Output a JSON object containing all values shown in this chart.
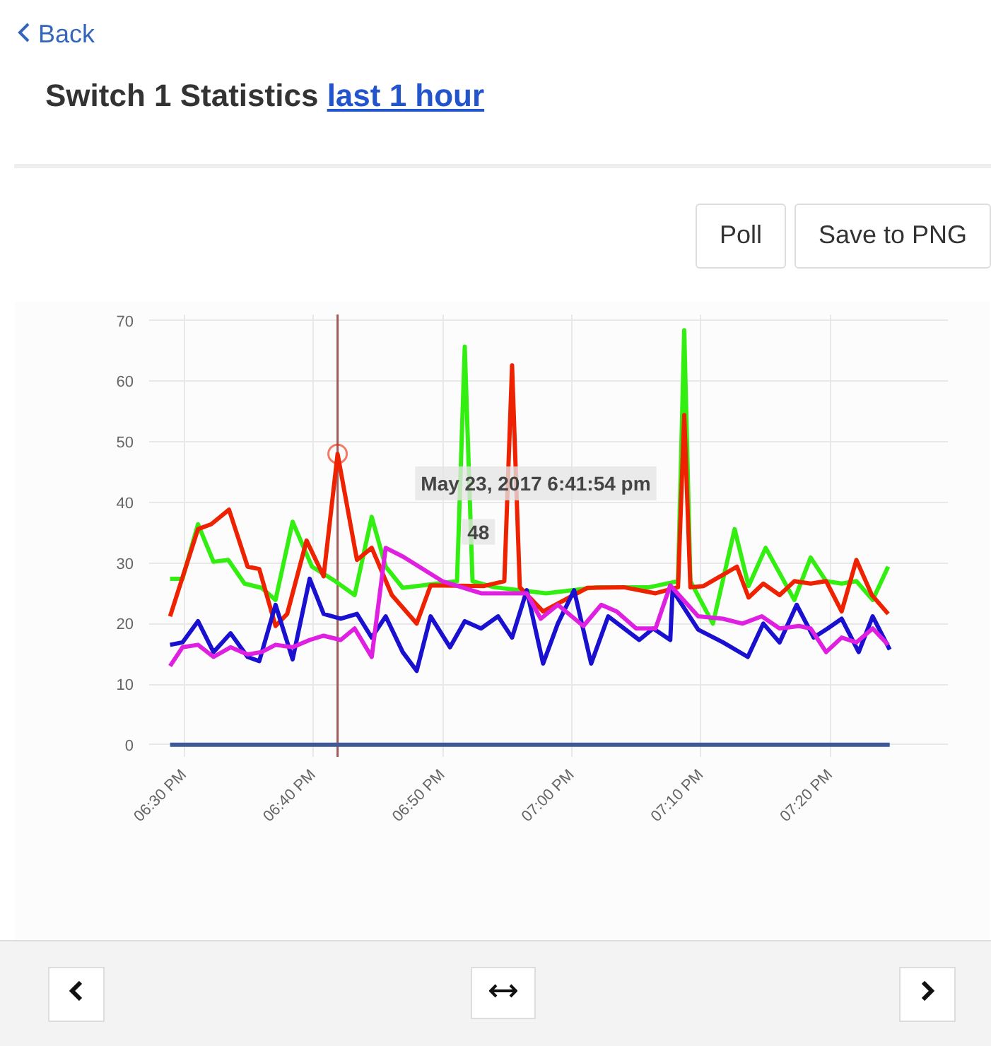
{
  "chart_data": {
    "type": "line",
    "title": "Switch 1 Statistics",
    "subtitle": "last 1 hour",
    "annotations": [
      "Back",
      "Poll",
      "Save to PNG",
      "May 23, 2017 6:41:54 pm",
      "48"
    ],
    "xlim": [
      18.455,
      19.485
    ],
    "ylim": [
      -2,
      71
    ],
    "xticks": [
      {
        "value": 18.5,
        "label": "06:30 PM"
      },
      {
        "value": 18.6667,
        "label": "06:40 PM"
      },
      {
        "value": 18.8333,
        "label": "06:50 PM"
      },
      {
        "value": 19,
        "label": "07:00 PM"
      },
      {
        "value": 19.1667,
        "label": "07:10 PM"
      },
      {
        "value": 19.3333,
        "label": "07:20 PM"
      }
    ],
    "yticks": [
      0,
      10,
      20,
      30,
      40,
      50,
      60,
      70
    ],
    "grid": true,
    "marker": "none",
    "line_style": "solid",
    "ref_lines": [
      {
        "axis": "x",
        "value": 18.698,
        "label": null,
        "color": "#a05a5a"
      }
    ],
    "series": [
      {
        "color": "#33ee11",
        "x": [
          18.482,
          18.498,
          18.518,
          18.538,
          18.557,
          18.578,
          18.6,
          18.618,
          18.64,
          18.665,
          18.695,
          18.72,
          18.742,
          18.76,
          18.782,
          18.852,
          18.862,
          18.872,
          18.9,
          18.967,
          19.033,
          19.1,
          19.137,
          19.145,
          19.153,
          19.182,
          19.21,
          19.228,
          19.25,
          19.287,
          19.308,
          19.328,
          19.348,
          19.367,
          19.388,
          19.408
        ],
        "values": [
          27.4,
          27.4,
          36.4,
          30.2,
          30.5,
          26.6,
          25.9,
          23.9,
          36.8,
          29.4,
          27,
          24.7,
          37.6,
          29.4,
          25.9,
          27,
          65.7,
          27,
          26,
          25,
          26,
          26,
          27,
          68.4,
          27,
          20,
          35.6,
          26.2,
          32.5,
          23.9,
          30.9,
          27,
          26.6,
          27,
          23.9,
          29.4
        ]
      },
      {
        "color": "#ee2200",
        "x": [
          18.482,
          18.518,
          18.535,
          18.558,
          18.582,
          18.597,
          18.618,
          18.633,
          18.658,
          18.68,
          18.698,
          18.723,
          18.742,
          18.768,
          18.8,
          18.818,
          18.887,
          18.913,
          18.923,
          18.933,
          18.963,
          19.02,
          19.067,
          19.108,
          19.137,
          19.145,
          19.153,
          19.17,
          19.213,
          19.228,
          19.247,
          19.268,
          19.287,
          19.308,
          19.328,
          19.348,
          19.367,
          19.387,
          19.408
        ],
        "values": [
          21.2,
          35.6,
          36.4,
          38.8,
          29.4,
          29,
          19.6,
          21.6,
          33.7,
          27.8,
          48,
          30.5,
          32.5,
          24.7,
          20,
          26.3,
          26.2,
          27,
          62.6,
          26,
          22,
          25.9,
          26,
          25,
          26,
          54.4,
          26,
          26.2,
          29.4,
          24.3,
          26.6,
          24.7,
          27,
          26.6,
          27,
          22,
          30.5,
          24.7,
          21.6
        ]
      },
      {
        "color": "#1a10d0",
        "x": [
          18.482,
          18.498,
          18.518,
          18.538,
          18.56,
          18.582,
          18.597,
          18.618,
          18.64,
          18.662,
          18.68,
          18.702,
          18.723,
          18.742,
          18.76,
          18.782,
          18.8,
          18.818,
          18.843,
          18.862,
          18.883,
          18.905,
          18.923,
          18.942,
          18.963,
          18.982,
          19.003,
          19.025,
          19.047,
          19.087,
          19.105,
          19.127,
          19.13,
          19.163,
          19.195,
          19.227,
          19.247,
          19.268,
          19.29,
          19.312,
          19.33,
          19.348,
          19.37,
          19.388,
          19.41
        ],
        "values": [
          16.5,
          16.9,
          20.4,
          15.3,
          18.4,
          14.5,
          13.8,
          23.1,
          14.1,
          27.4,
          21.6,
          20.8,
          21.6,
          17.7,
          21.2,
          15.3,
          12.2,
          21.2,
          16.1,
          20.4,
          19.2,
          21.2,
          17.7,
          25.5,
          13.4,
          20,
          25.5,
          13.4,
          21.2,
          17.3,
          19.2,
          17.3,
          25.5,
          19,
          16.9,
          14.5,
          20,
          16.9,
          23.1,
          17.7,
          19.2,
          20.8,
          15.3,
          21.2,
          15.7
        ]
      },
      {
        "color": "#e020e0",
        "x": [
          18.482,
          18.498,
          18.518,
          18.538,
          18.56,
          18.582,
          18.6,
          18.618,
          18.64,
          18.662,
          18.68,
          18.702,
          18.72,
          18.742,
          18.76,
          18.783,
          18.833,
          18.883,
          18.942,
          18.96,
          18.982,
          19.015,
          19.038,
          19.058,
          19.083,
          19.108,
          19.127,
          19.163,
          19.195,
          19.22,
          19.245,
          19.268,
          19.293,
          19.308,
          19.328,
          19.348,
          19.367,
          19.388,
          19.408
        ],
        "values": [
          13,
          16.1,
          16.5,
          14.5,
          16.1,
          14.9,
          15.3,
          16.5,
          16.1,
          17.3,
          18,
          17.3,
          19.2,
          14.5,
          32.5,
          31,
          27,
          25,
          25,
          20.8,
          23.1,
          19.6,
          23.1,
          22,
          19.2,
          19.2,
          26.3,
          21.2,
          20.8,
          20,
          21.2,
          19.2,
          19.6,
          19.2,
          15.3,
          17.7,
          16.9,
          19.2,
          16.5
        ]
      },
      {
        "color": "#3f5a96",
        "x": [
          18.482,
          19.41
        ],
        "values": [
          0,
          0
        ]
      }
    ]
  }
}
